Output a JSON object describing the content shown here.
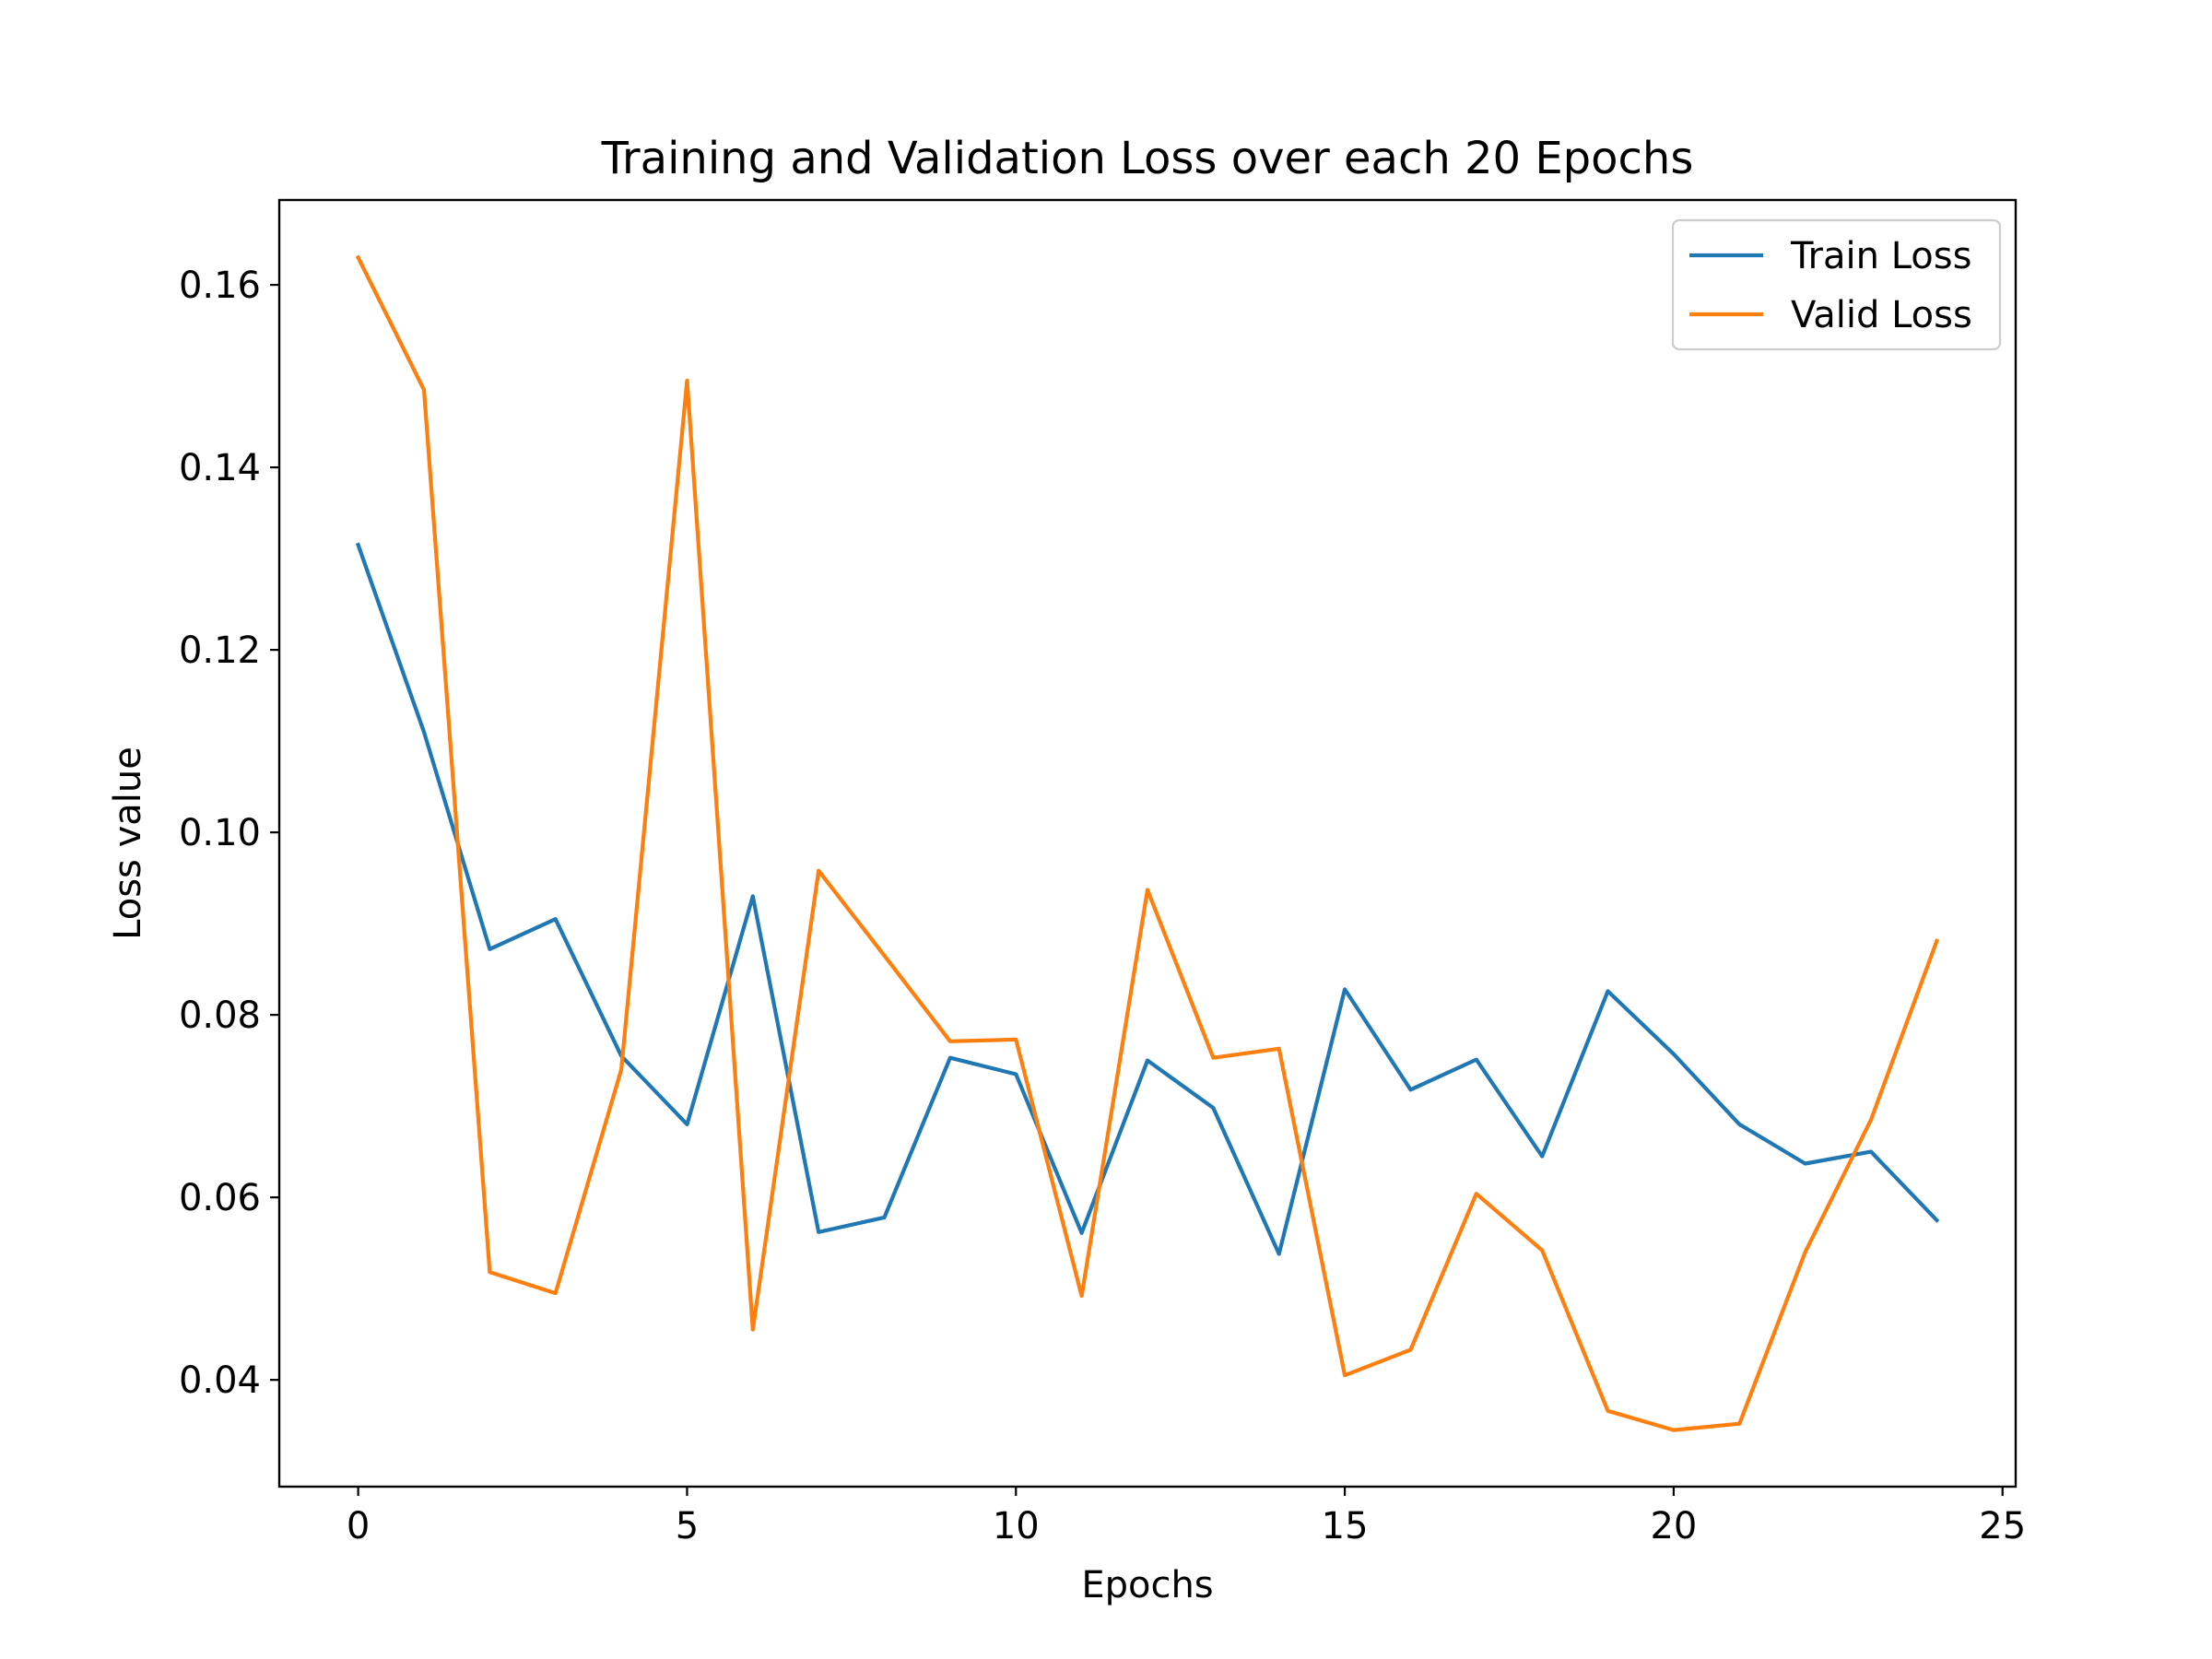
{
  "chart_data": {
    "type": "line",
    "title": "Training and Validation Loss over each 20 Epochs",
    "xlabel": "Epochs",
    "ylabel": "Loss value",
    "xlim": [
      -1.2,
      25.2
    ],
    "ylim": [
      0.0283,
      0.1693
    ],
    "xticks": [
      0,
      5,
      10,
      15,
      20,
      25
    ],
    "yticks": [
      0.04,
      0.06,
      0.08,
      0.1,
      0.12,
      0.14,
      0.16
    ],
    "ytick_labels": [
      "0.04",
      "0.06",
      "0.08",
      "0.10",
      "0.12",
      "0.14",
      "0.16"
    ],
    "grid": false,
    "legend_position": "top-right",
    "x": [
      0,
      1,
      2,
      3,
      4,
      5,
      6,
      7,
      8,
      9,
      10,
      11,
      12,
      13,
      14,
      15,
      16,
      17,
      18,
      19,
      20,
      21,
      22,
      23,
      24
    ],
    "series": [
      {
        "name": "Train Loss",
        "color": "#1f77b4",
        "values": [
          0.1315,
          0.111,
          0.0872,
          0.0905,
          0.0755,
          0.068,
          0.093,
          0.0562,
          0.0578,
          0.0753,
          0.0735,
          0.0561,
          0.075,
          0.0698,
          0.0538,
          0.0828,
          0.0718,
          0.0751,
          0.0645,
          0.0826,
          0.0757,
          0.068,
          0.0637,
          0.065,
          0.0575
        ]
      },
      {
        "name": "Valid Loss",
        "color": "#ff7f0e",
        "values": [
          0.163,
          0.1485,
          0.0518,
          0.0495,
          0.074,
          0.1495,
          0.0455,
          0.0958,
          0.0865,
          0.0771,
          0.0773,
          0.0492,
          0.0937,
          0.0753,
          0.0763,
          0.0405,
          0.0433,
          0.0604,
          0.0542,
          0.0366,
          0.0345,
          0.0352,
          0.054,
          0.0685,
          0.0881
        ]
      }
    ]
  }
}
